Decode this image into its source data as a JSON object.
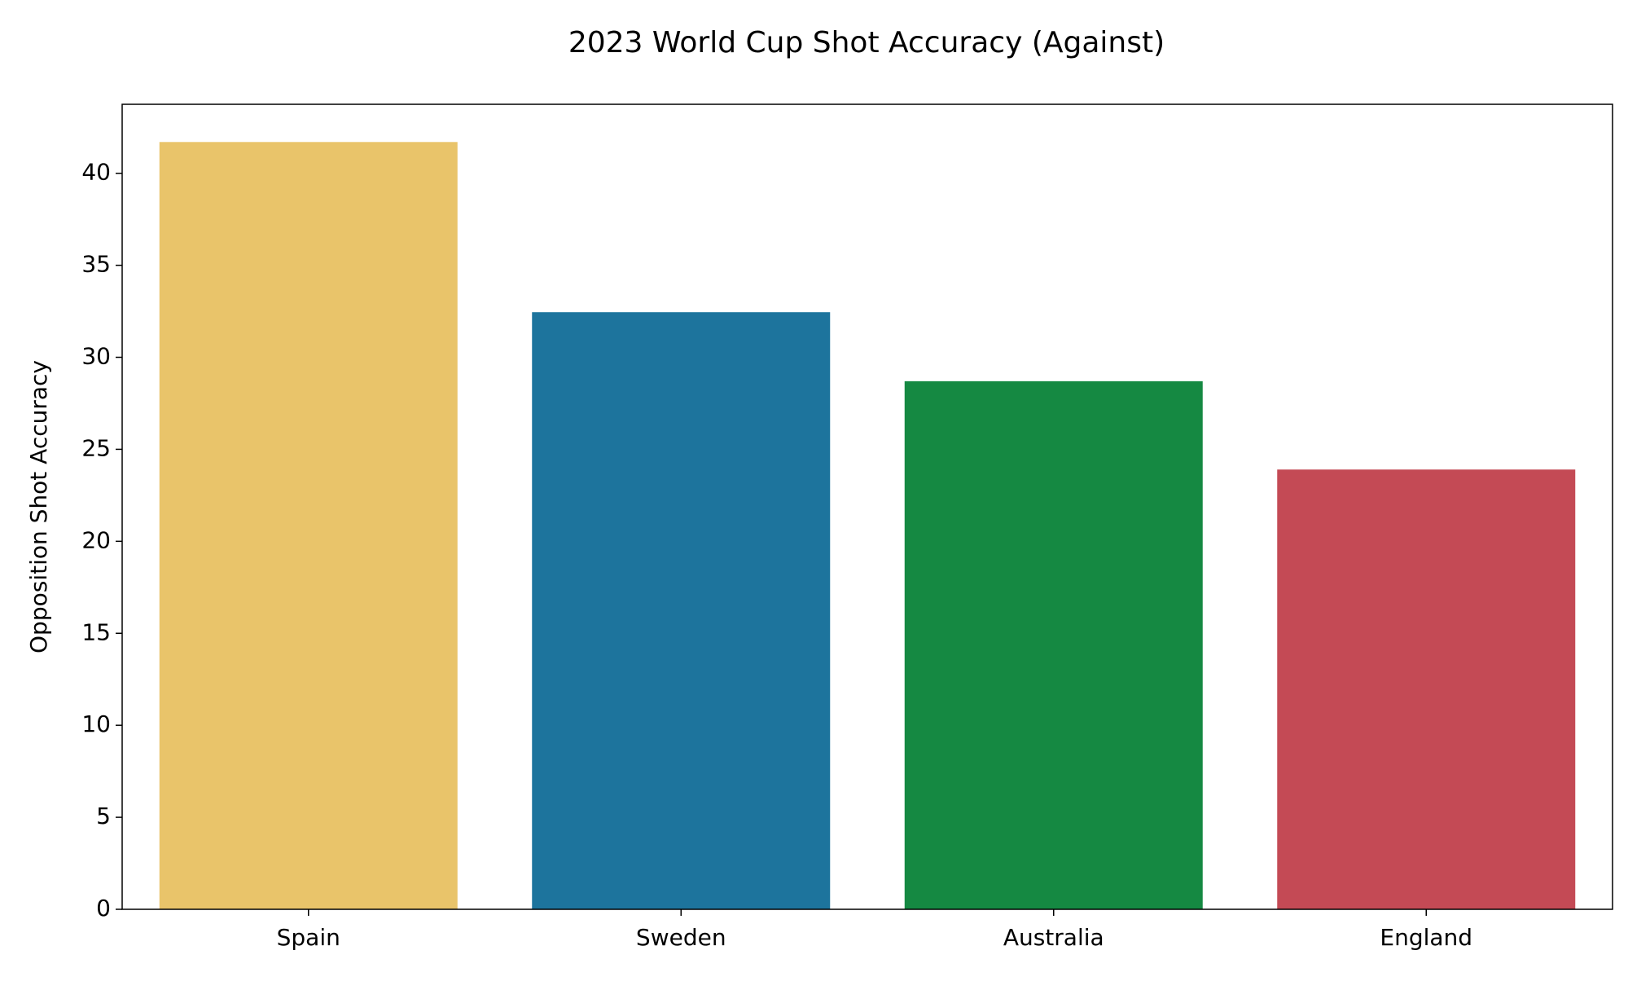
{
  "chart_data": {
    "type": "bar",
    "title": "2023 World Cup Shot Accuracy (Against)",
    "y_label": "Opposition Shot Accuracy",
    "categories": [
      "Spain",
      "Sweden",
      "Australia",
      "England"
    ],
    "values": [
      41.7,
      32.45,
      28.7,
      23.9
    ],
    "colors": [
      "#e9c46a",
      "#1d749d",
      "#158942",
      "#c44a55"
    ],
    "ylim": [
      0,
      43.75
    ],
    "yticks": [
      0,
      5,
      10,
      15,
      20,
      25,
      30,
      35,
      40
    ],
    "grid": false
  }
}
